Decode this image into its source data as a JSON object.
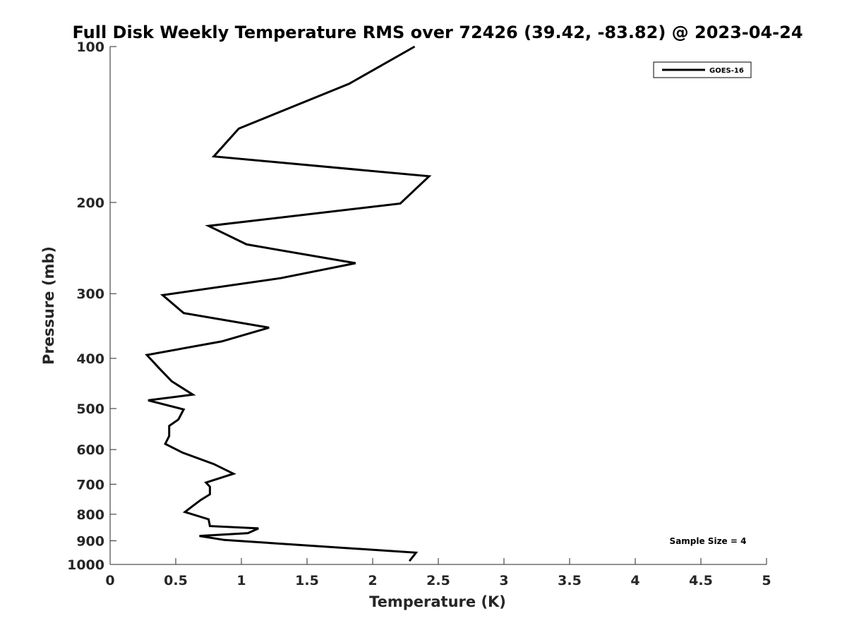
{
  "chart_data": {
    "type": "line",
    "title": "Full Disk Weekly Temperature RMS over 72426 (39.42, -83.82) @ 2023-04-24",
    "xlabel": "Temperature (K)",
    "ylabel": "Pressure (mb)",
    "xlim": [
      0,
      5
    ],
    "ylim": [
      100,
      1000
    ],
    "y_scale": "log",
    "y_reversed": true,
    "grid": false,
    "legend_position": "top-right",
    "x_ticks": [
      "0",
      "0.5",
      "1",
      "1.5",
      "2",
      "2.5",
      "3",
      "3.5",
      "4",
      "4.5",
      "5"
    ],
    "y_ticks": [
      "100",
      "200",
      "300",
      "400",
      "500",
      "600",
      "700",
      "800",
      "900",
      "1000"
    ],
    "series": [
      {
        "name": "GOES-16",
        "color": "#000000",
        "points": [
          [
            2.32,
            100
          ],
          [
            1.82,
            118
          ],
          [
            0.98,
            144
          ],
          [
            0.79,
            163
          ],
          [
            2.43,
            178
          ],
          [
            2.21,
            201
          ],
          [
            0.75,
            222
          ],
          [
            1.04,
            241
          ],
          [
            1.87,
            262
          ],
          [
            1.3,
            280
          ],
          [
            0.4,
            302
          ],
          [
            0.56,
            327
          ],
          [
            1.21,
            349
          ],
          [
            0.85,
            371
          ],
          [
            0.28,
            394
          ],
          [
            0.37,
            417
          ],
          [
            0.47,
            443
          ],
          [
            0.63,
            470
          ],
          [
            0.29,
            482
          ],
          [
            0.56,
            502
          ],
          [
            0.52,
            525
          ],
          [
            0.45,
            540
          ],
          [
            0.45,
            565
          ],
          [
            0.42,
            585
          ],
          [
            0.55,
            608
          ],
          [
            0.79,
            640
          ],
          [
            0.94,
            668
          ],
          [
            0.73,
            695
          ],
          [
            0.76,
            708
          ],
          [
            0.76,
            732
          ],
          [
            0.69,
            751
          ],
          [
            0.63,
            771
          ],
          [
            0.57,
            792
          ],
          [
            0.75,
            818
          ],
          [
            0.76,
            843
          ],
          [
            1.13,
            852
          ],
          [
            1.05,
            870
          ],
          [
            0.68,
            881
          ],
          [
            0.87,
            897
          ],
          [
            2.33,
            949
          ],
          [
            2.28,
            985
          ]
        ]
      }
    ],
    "annotations": [
      "Sample Size = 4"
    ]
  }
}
